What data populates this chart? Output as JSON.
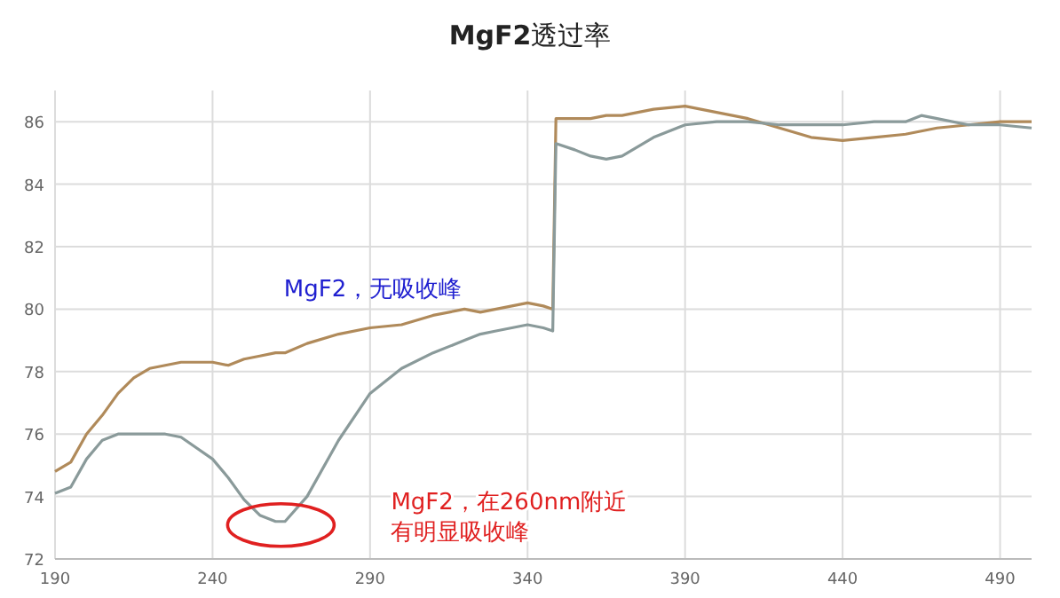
{
  "chart_data": {
    "type": "line",
    "title": "**MgF2**透过率",
    "x": [
      190,
      195,
      200,
      205,
      210,
      215,
      220,
      225,
      230,
      240,
      245,
      250,
      255,
      260,
      263,
      270,
      280,
      290,
      300,
      310,
      320,
      325,
      330,
      340,
      345,
      348,
      349,
      355,
      360,
      365,
      370,
      380,
      390,
      400,
      410,
      420,
      430,
      440,
      450,
      460,
      465,
      470,
      480,
      490,
      500
    ],
    "series": [
      {
        "color": "#b08a5a",
        "values": [
          74.8,
          75.1,
          76.0,
          76.6,
          77.3,
          77.8,
          78.1,
          78.2,
          78.3,
          78.3,
          78.2,
          78.4,
          78.5,
          78.6,
          78.6,
          78.9,
          79.2,
          79.4,
          79.5,
          79.8,
          80.0,
          79.9,
          80.0,
          80.2,
          80.1,
          80.0,
          86.1,
          86.1,
          86.1,
          86.2,
          86.2,
          86.4,
          86.5,
          86.3,
          86.1,
          85.8,
          85.5,
          85.4,
          85.5,
          85.6,
          85.7,
          85.8,
          85.9,
          86.0,
          86.0
        ]
      },
      {
        "color": "#8a9a9a",
        "values": [
          74.1,
          74.3,
          75.2,
          75.8,
          76.0,
          76.0,
          76.0,
          76.0,
          75.9,
          75.2,
          74.6,
          73.9,
          73.4,
          73.2,
          73.2,
          74.0,
          75.8,
          77.3,
          78.1,
          78.6,
          79.0,
          79.2,
          79.3,
          79.5,
          79.4,
          79.3,
          85.3,
          85.1,
          84.9,
          84.8,
          84.9,
          85.5,
          85.9,
          86.0,
          86.0,
          85.9,
          85.9,
          85.9,
          86.0,
          86.0,
          86.2,
          86.1,
          85.9,
          85.9,
          85.8
        ]
      }
    ],
    "xlim": [
      190,
      500
    ],
    "ylim": [
      72,
      87
    ],
    "xticks": [
      190,
      240,
      290,
      340,
      390,
      440,
      490
    ],
    "yticks": [
      72,
      74,
      76,
      78,
      80,
      82,
      84,
      86
    ],
    "grid": true,
    "marker": "none",
    "line_style": "solid",
    "annotations": [
      "MgF2，无吸收峰",
      "MgF2，在260nm附近有明显吸收峰"
    ]
  }
}
